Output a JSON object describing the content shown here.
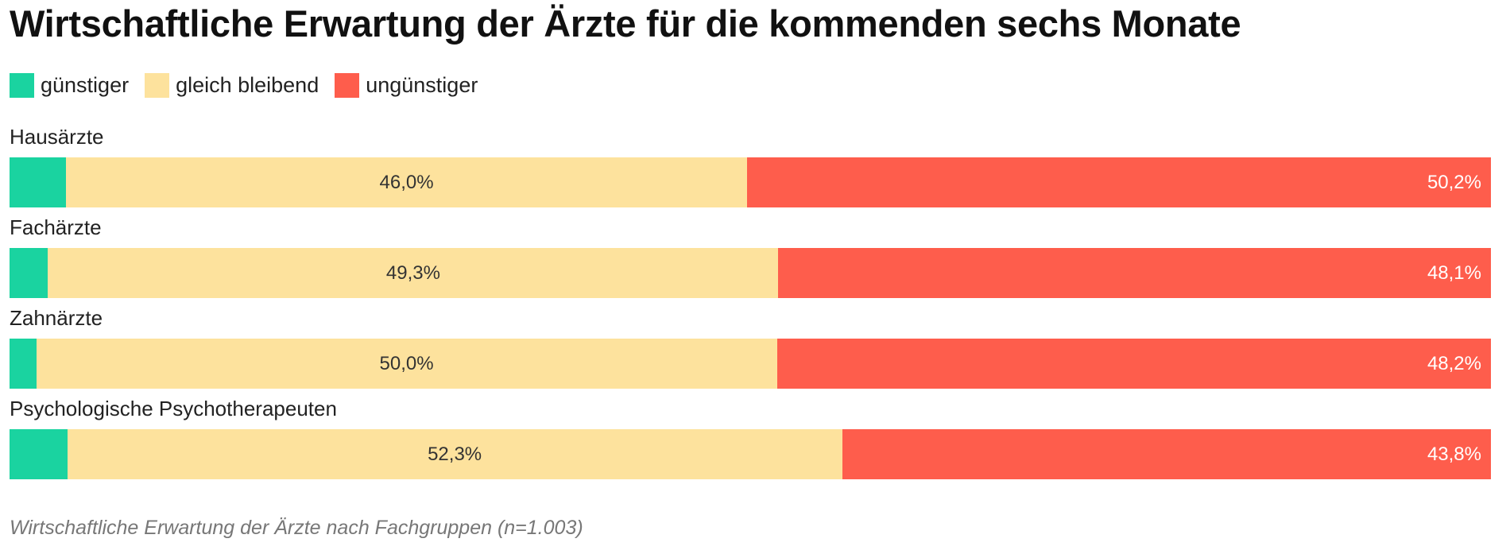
{
  "chart_data": {
    "type": "bar",
    "orientation": "horizontal",
    "stacked": true,
    "title": "Wirtschaftliche Erwartung der Ärzte für die kommenden sechs Monate",
    "legend_position": "top-left",
    "categories": [
      "Hausärzte",
      "Fachärzte",
      "Zahnärzte",
      "Psychologische Psychotherapeuten"
    ],
    "series": [
      {
        "name": "günstiger",
        "color": "#1ad3a0",
        "values": [
          3.8,
          2.6,
          1.8,
          3.9
        ],
        "labels": [
          "",
          "",
          "",
          ""
        ]
      },
      {
        "name": "gleich bleibend",
        "color": "#fde29d",
        "values": [
          46.0,
          49.3,
          50.0,
          52.3
        ],
        "labels": [
          "46,0%",
          "49,3%",
          "50,0%",
          "52,3%"
        ]
      },
      {
        "name": "ungünstiger",
        "color": "#fe5d4c",
        "values": [
          50.2,
          48.1,
          48.2,
          43.8
        ],
        "labels": [
          "50,2%",
          "48,1%",
          "48,2%",
          "43,8%"
        ]
      }
    ],
    "xlim": [
      0,
      100
    ],
    "grid": false,
    "caption": "Wirtschaftliche Erwartung der Ärzte nach Fachgruppen (n=1.003)"
  }
}
